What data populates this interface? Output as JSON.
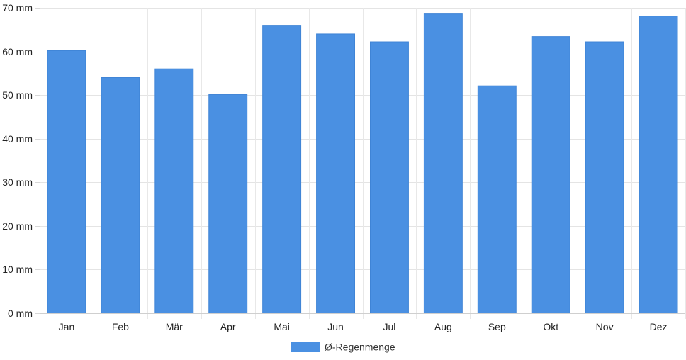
{
  "chart_data": {
    "type": "bar",
    "categories": [
      "Jan",
      "Feb",
      "Mär",
      "Apr",
      "Mai",
      "Jun",
      "Jul",
      "Aug",
      "Sep",
      "Okt",
      "Nov",
      "Dez"
    ],
    "series": [
      {
        "name": "Ø-Regenmenge",
        "values": [
          60.2,
          54.0,
          56.0,
          50.1,
          66.0,
          64.0,
          62.2,
          68.6,
          52.1,
          63.4,
          62.2,
          68.1
        ],
        "color": "#4a90e2"
      }
    ],
    "y_ticks": [
      "0 mm",
      "10 mm",
      "20 mm",
      "30 mm",
      "40 mm",
      "50 mm",
      "60 mm",
      "70 mm"
    ],
    "ylim": [
      0,
      70
    ],
    "y_step": 10,
    "grid": true,
    "legend_position": "bottom-center"
  }
}
